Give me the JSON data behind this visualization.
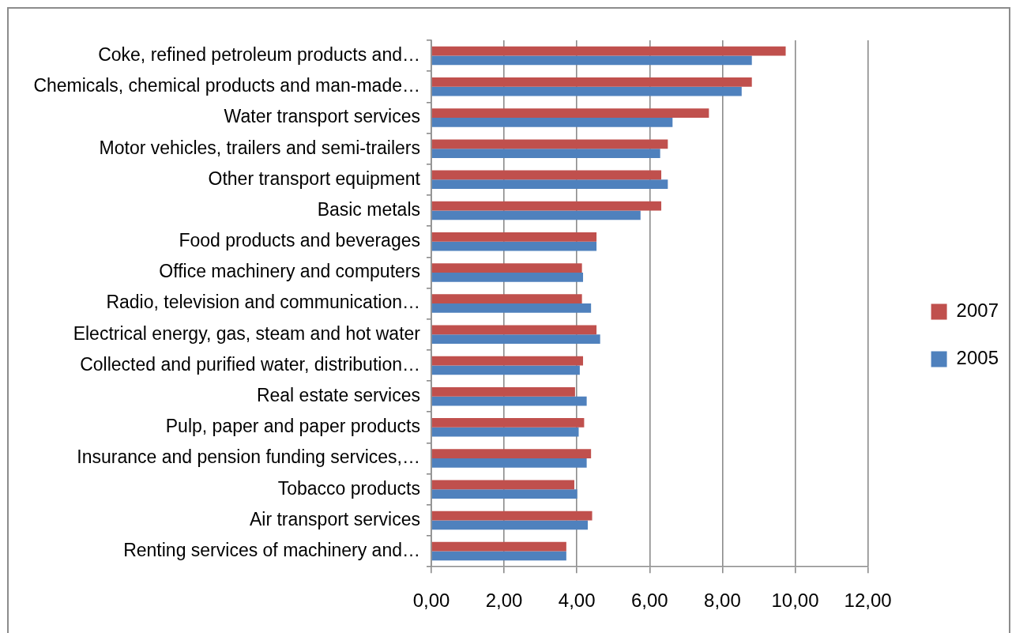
{
  "chart_data": {
    "type": "bar",
    "orientation": "horizontal",
    "categories": [
      "Coke, refined petroleum products and…",
      "Chemicals, chemical products and man-made…",
      "Water transport services",
      "Motor vehicles, trailers and semi-trailers",
      "Other transport equipment",
      "Basic metals",
      "Food products and beverages",
      "Office machinery and computers",
      "Radio, television and communication…",
      "Electrical energy, gas, steam and hot water",
      "Collected and purified water, distribution…",
      "Real estate services",
      "Pulp, paper and paper products",
      "Insurance and pension funding services,…",
      "Tobacco products",
      "Air transport services",
      "Renting services of machinery and…"
    ],
    "series": [
      {
        "name": "2007",
        "color": "#c0504d",
        "values": [
          9.74,
          8.81,
          7.63,
          6.5,
          6.32,
          6.32,
          4.54,
          4.14,
          4.14,
          4.54,
          4.17,
          3.95,
          4.2,
          4.39,
          3.93,
          4.42,
          3.71
        ]
      },
      {
        "name": "2005",
        "color": "#4f81bd",
        "values": [
          8.81,
          8.53,
          6.63,
          6.29,
          6.5,
          5.75,
          4.54,
          4.17,
          4.39,
          4.64,
          4.08,
          4.27,
          4.05,
          4.27,
          4.01,
          4.3,
          3.71
        ]
      }
    ],
    "xlim": [
      0,
      12
    ],
    "xticks": [
      {
        "value": 0,
        "label": "0,00"
      },
      {
        "value": 2,
        "label": "2,00"
      },
      {
        "value": 4,
        "label": "4,00"
      },
      {
        "value": 6,
        "label": "6,00"
      },
      {
        "value": 8,
        "label": "8,00"
      },
      {
        "value": 10,
        "label": "10,00"
      },
      {
        "value": 12,
        "label": "12,00"
      }
    ],
    "grid": "x",
    "legend": "right"
  }
}
